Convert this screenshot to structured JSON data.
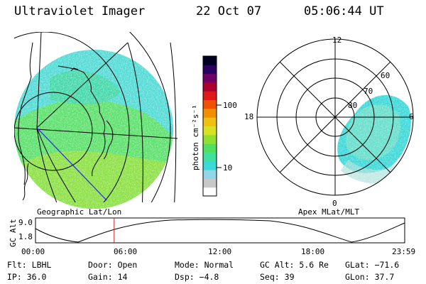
{
  "header": {
    "instrument": "Ultraviolet Imager",
    "date": "22 Oct 07",
    "time": "05:06:44 UT"
  },
  "colorbar": {
    "unit_label": "photon cm⁻²s⁻¹",
    "ticks": [
      "100",
      "10"
    ],
    "colors": [
      "#ffffff",
      "#c8c8c8",
      "#90d8e8",
      "#3ad8d8",
      "#40e0a0",
      "#50e060",
      "#90e030",
      "#d8e020",
      "#f0c010",
      "#f09000",
      "#f05000",
      "#e01818",
      "#b00030",
      "#70006a",
      "#2a0060",
      "#000020"
    ]
  },
  "left_panel": {
    "label": "Geographic Lat/Lon",
    "colors": {
      "aurora_light": "#7ee0c8",
      "aurora_mid": "#3cd8d8",
      "aurora_green": "#58e060",
      "aurora_lime": "#8ae040",
      "meridian_blue": "#2020ff"
    }
  },
  "right_panel": {
    "label": "Apex MLat/MLT",
    "mlt_labels": [
      "12",
      "18",
      "6",
      "0"
    ],
    "lat_labels": [
      "60",
      "70",
      "80"
    ]
  },
  "altitude_plot": {
    "axis_label": "GC Alt",
    "y_ticks": [
      "9.0",
      "1.8"
    ],
    "x_ticks": [
      "00:00",
      "06:00",
      "12:00",
      "18:00",
      "23:59"
    ],
    "current_time_fraction": 0.213,
    "marker_color": "#d02020"
  },
  "info": {
    "filter_label": "Flt:",
    "filter_value": "LBHL",
    "door_label": "Door:",
    "door_value": "Open",
    "mode_label": "Mode:",
    "mode_value": "Normal",
    "gcalt_label": "GC Alt:",
    "gcalt_value": "5.6 Re",
    "glat_label": "GLat:",
    "glat_value": "−71.6",
    "ip_label": "IP:",
    "ip_value": "36.0",
    "gain_label": "Gain:",
    "gain_value": "14",
    "dsp_label": "Dsp:",
    "dsp_value": "−4.8",
    "seq_label": "Seq:",
    "seq_value": "39",
    "glon_label": "GLon:",
    "glon_value": "37.7"
  }
}
